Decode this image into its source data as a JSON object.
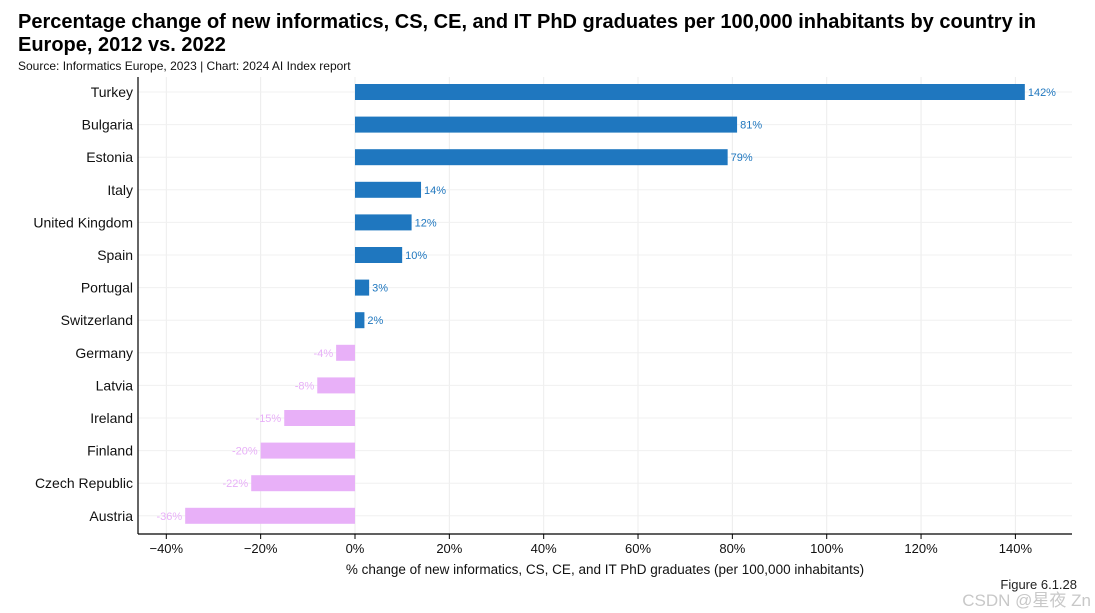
{
  "chart_data": {
    "type": "bar",
    "orientation": "horizontal",
    "title": "Percentage change of new informatics, CS, CE, and IT PhD graduates per 100,000 inhabitants by country in Europe, 2012 vs. 2022",
    "subtitle": "Source: Informatics Europe, 2023 | Chart: 2024 AI Index report",
    "categories": [
      "Turkey",
      "Bulgaria",
      "Estonia",
      "Italy",
      "United Kingdom",
      "Spain",
      "Portugal",
      "Switzerland",
      "Germany",
      "Latvia",
      "Ireland",
      "Finland",
      "Czech Republic",
      "Austria"
    ],
    "values": [
      142,
      81,
      79,
      14,
      12,
      10,
      3,
      2,
      -4,
      -8,
      -15,
      -20,
      -22,
      -36
    ],
    "value_labels": [
      "142%",
      "81%",
      "79%",
      "14%",
      "12%",
      "10%",
      "3%",
      "2%",
      "-4%",
      "-8%",
      "-15%",
      "-20%",
      "-22%",
      "-36%"
    ],
    "xlabel": "% change of new informatics, CS, CE, and IT PhD graduates (per 100,000 inhabitants)",
    "ylabel": "",
    "xlim": [
      -46,
      152
    ],
    "xticks": [
      -40,
      -20,
      0,
      20,
      40,
      60,
      80,
      100,
      120,
      140
    ],
    "xtick_labels": [
      "−40%",
      "−20%",
      "0%",
      "20%",
      "40%",
      "60%",
      "80%",
      "100%",
      "120%",
      "140%"
    ],
    "grid": true,
    "colors": {
      "positive": "#1f77bf",
      "negative": "#e8b0f8"
    }
  },
  "figure_label": "Figure 6.1.28",
  "watermark": "CSDN @星夜 Zn"
}
